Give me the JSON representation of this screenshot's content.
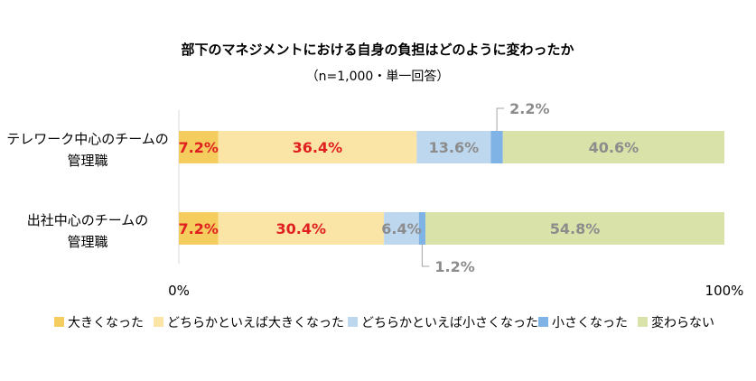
{
  "chart_data": {
    "type": "bar",
    "orientation": "horizontal",
    "stacked": true,
    "title": "部下のマネジメントにおける自身の負担はどのように変わったか",
    "subtitle": "（n=1,000・単一回答）",
    "categories": [
      "テレワーク中心のチームの管理職",
      "出社中心のチームの管理職"
    ],
    "category_lines": [
      [
        "テレワーク中心のチームの",
        "管理職"
      ],
      [
        "出社中心のチームの",
        "管理職"
      ]
    ],
    "series": [
      {
        "name": "大きくなった",
        "values": [
          7.2,
          7.2
        ],
        "color": "#f5cd5e",
        "label_color": "#e02020"
      },
      {
        "name": "どちらかといえば大きくなった",
        "values": [
          36.4,
          30.4
        ],
        "color": "#fbe5a6",
        "label_color": "#e02020"
      },
      {
        "name": "どちらかといえば小さくなった",
        "values": [
          13.6,
          6.4
        ],
        "color": "#bdd7ee",
        "label_color": "#8c8c8c"
      },
      {
        "name": "小さくなった",
        "values": [
          2.2,
          1.2
        ],
        "color": "#7fb2e5",
        "label_color": "#8c8c8c"
      },
      {
        "name": "変わらない",
        "values": [
          40.6,
          54.8
        ],
        "color": "#d9e3a9",
        "label_color": "#8c8c8c"
      }
    ],
    "data_label_suffix": "%",
    "callouts": [
      {
        "category_index": 0,
        "series_index": 3,
        "label": "2.2%",
        "direction": "up"
      },
      {
        "category_index": 1,
        "series_index": 3,
        "label": "1.2%",
        "direction": "down"
      }
    ],
    "xlim": [
      0,
      100
    ],
    "x_ticks": [
      {
        "value": 0,
        "label": "0%"
      },
      {
        "value": 100,
        "label": "100%"
      }
    ],
    "grid": false,
    "legend_position": "bottom"
  }
}
